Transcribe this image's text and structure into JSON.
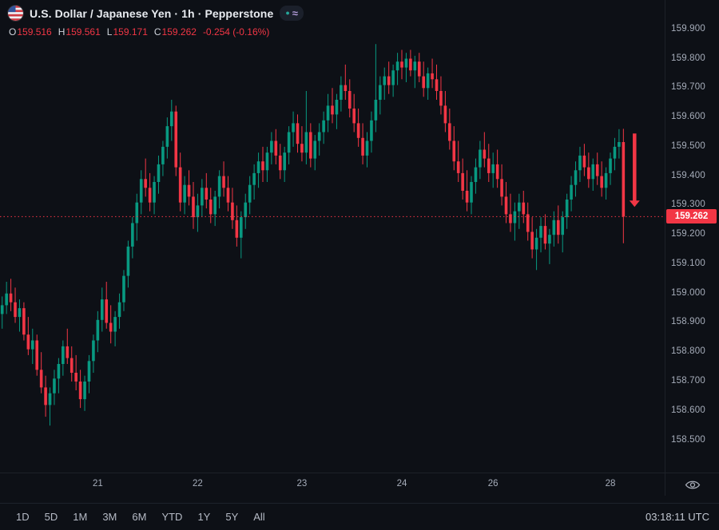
{
  "header": {
    "title": "U.S. Dollar / Japanese Yen · 1h · Pepperstone",
    "flag_icon": "us-flag-circle-icon",
    "badges": [
      {
        "name": "market-status-dot",
        "glyph": "●",
        "color": "#26a69a"
      },
      {
        "name": "compare-wave",
        "glyph": "≈",
        "color": "#b39ddb"
      }
    ],
    "ohlc": {
      "o_label": "O",
      "o_value": "159.516",
      "h_label": "H",
      "h_value": "159.561",
      "l_label": "L",
      "l_value": "159.171",
      "c_label": "C",
      "c_value": "159.262",
      "change": "-0.254 (-0.16%)",
      "value_color": "#f23645"
    }
  },
  "chart_data": {
    "type": "candlestick",
    "title": "U.S. Dollar / Japanese Yen",
    "interval": "1h",
    "provider": "Pepperstone",
    "up_color": "#089981",
    "down_color": "#f23645",
    "ylim": [
      158.39,
      160.0
    ],
    "y_ticks": [
      "159.900",
      "159.800",
      "159.700",
      "159.600",
      "159.500",
      "159.400",
      "159.300",
      "159.200",
      "159.100",
      "159.000",
      "158.900",
      "158.800",
      "158.700",
      "158.600",
      "158.500"
    ],
    "x_ticks": [
      {
        "label": "21",
        "index": 22
      },
      {
        "label": "22",
        "index": 45
      },
      {
        "label": "23",
        "index": 69
      },
      {
        "label": "24",
        "index": 92
      },
      {
        "label": "26",
        "index": 113
      },
      {
        "label": "28",
        "index": 140
      }
    ],
    "last_price": 159.262,
    "last_price_label": "159.262",
    "candles": [
      [
        158.93,
        158.99,
        158.88,
        158.96
      ],
      [
        158.96,
        159.04,
        158.93,
        159.0
      ],
      [
        159.0,
        159.05,
        158.94,
        158.97
      ],
      [
        158.97,
        159.02,
        158.9,
        158.92
      ],
      [
        158.92,
        158.98,
        158.87,
        158.95
      ],
      [
        158.95,
        158.97,
        158.84,
        158.86
      ],
      [
        158.86,
        158.92,
        158.79,
        158.81
      ],
      [
        158.81,
        158.88,
        158.76,
        158.84
      ],
      [
        158.84,
        158.86,
        158.72,
        158.74
      ],
      [
        158.74,
        158.8,
        158.66,
        158.68
      ],
      [
        158.68,
        158.72,
        158.58,
        158.62
      ],
      [
        158.62,
        158.68,
        158.55,
        158.66
      ],
      [
        158.66,
        158.74,
        158.62,
        158.71
      ],
      [
        158.71,
        158.78,
        158.66,
        158.76
      ],
      [
        158.76,
        158.84,
        158.72,
        158.82
      ],
      [
        158.82,
        158.88,
        158.76,
        158.78
      ],
      [
        158.78,
        158.82,
        158.7,
        158.73
      ],
      [
        158.73,
        158.79,
        158.67,
        158.7
      ],
      [
        158.7,
        158.74,
        158.61,
        158.64
      ],
      [
        158.64,
        158.72,
        158.6,
        158.7
      ],
      [
        158.7,
        158.79,
        158.66,
        158.77
      ],
      [
        158.77,
        158.86,
        158.73,
        158.84
      ],
      [
        158.84,
        158.94,
        158.8,
        158.91
      ],
      [
        158.91,
        159.02,
        158.87,
        158.98
      ],
      [
        158.98,
        159.04,
        158.88,
        158.9
      ],
      [
        158.9,
        158.96,
        158.83,
        158.87
      ],
      [
        158.87,
        158.94,
        158.82,
        158.92
      ],
      [
        158.92,
        159.0,
        158.88,
        158.97
      ],
      [
        158.97,
        159.08,
        158.94,
        159.06
      ],
      [
        159.06,
        159.18,
        159.02,
        159.16
      ],
      [
        159.16,
        159.26,
        159.12,
        159.24
      ],
      [
        159.24,
        159.34,
        159.18,
        159.31
      ],
      [
        159.31,
        159.42,
        159.27,
        159.39
      ],
      [
        159.39,
        159.46,
        159.33,
        159.36
      ],
      [
        159.36,
        159.41,
        159.28,
        159.31
      ],
      [
        159.31,
        159.4,
        159.27,
        159.38
      ],
      [
        159.38,
        159.47,
        159.34,
        159.44
      ],
      [
        159.44,
        159.52,
        159.4,
        159.5
      ],
      [
        159.5,
        159.6,
        159.46,
        159.57
      ],
      [
        159.57,
        159.66,
        159.52,
        159.62
      ],
      [
        159.62,
        159.64,
        159.4,
        159.43
      ],
      [
        159.43,
        159.48,
        159.28,
        159.31
      ],
      [
        159.31,
        159.4,
        159.27,
        159.37
      ],
      [
        159.37,
        159.42,
        159.3,
        159.33
      ],
      [
        159.33,
        159.38,
        159.22,
        159.26
      ],
      [
        159.26,
        159.34,
        159.21,
        159.3
      ],
      [
        159.3,
        159.39,
        159.26,
        159.36
      ],
      [
        159.36,
        159.41,
        159.29,
        159.32
      ],
      [
        159.32,
        159.36,
        159.24,
        159.27
      ],
      [
        159.27,
        159.35,
        159.23,
        159.33
      ],
      [
        159.33,
        159.42,
        159.29,
        159.4
      ],
      [
        159.4,
        159.45,
        159.33,
        159.36
      ],
      [
        159.36,
        159.4,
        159.28,
        159.31
      ],
      [
        159.31,
        159.36,
        159.22,
        159.25
      ],
      [
        159.25,
        159.3,
        159.16,
        159.19
      ],
      [
        159.19,
        159.28,
        159.12,
        159.26
      ],
      [
        159.26,
        159.34,
        159.22,
        159.31
      ],
      [
        159.31,
        159.4,
        159.27,
        159.37
      ],
      [
        159.37,
        159.44,
        159.32,
        159.41
      ],
      [
        159.41,
        159.48,
        159.36,
        159.45
      ],
      [
        159.45,
        159.5,
        159.38,
        159.42
      ],
      [
        159.42,
        159.5,
        159.38,
        159.48
      ],
      [
        159.48,
        159.55,
        159.44,
        159.52
      ],
      [
        159.52,
        159.56,
        159.44,
        159.47
      ],
      [
        159.47,
        159.51,
        159.39,
        159.42
      ],
      [
        159.42,
        159.5,
        159.38,
        159.48
      ],
      [
        159.48,
        159.57,
        159.44,
        159.55
      ],
      [
        159.55,
        159.62,
        159.5,
        159.58
      ],
      [
        159.58,
        159.61,
        159.48,
        159.51
      ],
      [
        159.51,
        159.57,
        159.45,
        159.48
      ],
      [
        159.48,
        159.69,
        159.44,
        159.55
      ],
      [
        159.55,
        159.58,
        159.43,
        159.46
      ],
      [
        159.46,
        159.54,
        159.42,
        159.52
      ],
      [
        159.52,
        159.58,
        159.47,
        159.55
      ],
      [
        159.55,
        159.62,
        159.51,
        159.59
      ],
      [
        159.59,
        159.68,
        159.55,
        159.64
      ],
      [
        159.64,
        159.7,
        159.58,
        159.61
      ],
      [
        159.61,
        159.68,
        159.56,
        159.66
      ],
      [
        159.66,
        159.74,
        159.62,
        159.71
      ],
      [
        159.71,
        159.78,
        159.66,
        159.69
      ],
      [
        159.69,
        159.73,
        159.6,
        159.63
      ],
      [
        159.63,
        159.68,
        159.55,
        159.58
      ],
      [
        159.58,
        159.63,
        159.5,
        159.53
      ],
      [
        159.53,
        159.58,
        159.44,
        159.47
      ],
      [
        159.47,
        159.55,
        159.43,
        159.52
      ],
      [
        159.52,
        159.62,
        159.48,
        159.59
      ],
      [
        159.59,
        159.85,
        159.55,
        159.66
      ],
      [
        159.66,
        159.74,
        159.61,
        159.71
      ],
      [
        159.71,
        159.77,
        159.66,
        159.74
      ],
      [
        159.74,
        159.79,
        159.68,
        159.71
      ],
      [
        159.71,
        159.78,
        159.67,
        159.76
      ],
      [
        159.76,
        159.82,
        159.71,
        159.79
      ],
      [
        159.79,
        159.83,
        159.73,
        159.77
      ],
      [
        159.77,
        159.82,
        159.72,
        159.8
      ],
      [
        159.8,
        159.83,
        159.74,
        159.76
      ],
      [
        159.76,
        159.81,
        159.7,
        159.79
      ],
      [
        159.79,
        159.82,
        159.72,
        159.74
      ],
      [
        159.74,
        159.79,
        159.67,
        159.7
      ],
      [
        159.7,
        159.77,
        159.66,
        159.75
      ],
      [
        159.75,
        159.8,
        159.7,
        159.73
      ],
      [
        159.73,
        159.78,
        159.66,
        159.69
      ],
      [
        159.69,
        159.74,
        159.61,
        159.64
      ],
      [
        159.64,
        159.69,
        159.55,
        159.58
      ],
      [
        159.58,
        159.63,
        159.49,
        159.52
      ],
      [
        159.52,
        159.57,
        159.42,
        159.45
      ],
      [
        159.45,
        159.52,
        159.38,
        159.41
      ],
      [
        159.41,
        159.46,
        159.32,
        159.35
      ],
      [
        159.35,
        159.42,
        159.28,
        159.31
      ],
      [
        159.31,
        159.4,
        159.27,
        159.38
      ],
      [
        159.38,
        159.46,
        159.34,
        159.43
      ],
      [
        159.43,
        159.52,
        159.39,
        159.49
      ],
      [
        159.49,
        159.55,
        159.43,
        159.46
      ],
      [
        159.46,
        159.51,
        159.38,
        159.41
      ],
      [
        159.41,
        159.48,
        159.36,
        159.44
      ],
      [
        159.44,
        159.49,
        159.36,
        159.39
      ],
      [
        159.39,
        159.44,
        159.3,
        159.33
      ],
      [
        159.33,
        159.38,
        159.24,
        159.27
      ],
      [
        159.27,
        159.34,
        159.21,
        159.24
      ],
      [
        159.24,
        159.31,
        159.18,
        159.28
      ],
      [
        159.28,
        159.34,
        159.22,
        159.31
      ],
      [
        159.31,
        159.35,
        159.24,
        159.27
      ],
      [
        159.27,
        159.31,
        159.18,
        159.21
      ],
      [
        159.21,
        159.26,
        159.12,
        159.15
      ],
      [
        159.15,
        159.22,
        159.08,
        159.19
      ],
      [
        159.19,
        159.26,
        159.14,
        159.23
      ],
      [
        159.23,
        159.27,
        159.15,
        159.17
      ],
      [
        159.17,
        159.22,
        159.1,
        159.2
      ],
      [
        159.2,
        159.28,
        159.16,
        159.25
      ],
      [
        159.25,
        159.3,
        159.17,
        159.2
      ],
      [
        159.2,
        159.28,
        159.14,
        159.26
      ],
      [
        159.26,
        159.34,
        159.22,
        159.32
      ],
      [
        159.32,
        159.4,
        159.28,
        159.37
      ],
      [
        159.37,
        159.45,
        159.33,
        159.42
      ],
      [
        159.42,
        159.5,
        159.38,
        159.47
      ],
      [
        159.47,
        159.51,
        159.4,
        159.43
      ],
      [
        159.43,
        159.48,
        159.36,
        159.39
      ],
      [
        159.39,
        159.46,
        159.35,
        159.44
      ],
      [
        159.44,
        159.48,
        159.37,
        159.4
      ],
      [
        159.4,
        159.45,
        159.33,
        159.36
      ],
      [
        159.36,
        159.43,
        159.32,
        159.41
      ],
      [
        159.41,
        159.48,
        159.37,
        159.46
      ],
      [
        159.46,
        159.53,
        159.42,
        159.5
      ],
      [
        159.5,
        159.56,
        159.46,
        159.516
      ],
      [
        159.516,
        159.561,
        159.171,
        159.262
      ]
    ]
  },
  "annotations": {
    "arrow": {
      "shape": "down-arrow",
      "color": "#f23645",
      "from_price": 159.545,
      "to_price": 159.295
    }
  },
  "toolbar": {
    "ranges": [
      "1D",
      "5D",
      "1M",
      "3M",
      "6M",
      "YTD",
      "1Y",
      "5Y",
      "All"
    ],
    "timezone": "03:18:11 UTC"
  }
}
